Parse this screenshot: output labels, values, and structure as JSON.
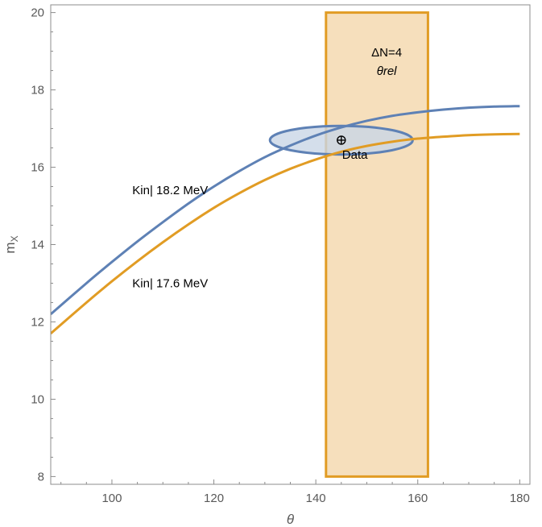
{
  "chart_data": {
    "type": "line",
    "title": "",
    "xlabel": "θ",
    "ylabel_main": "m",
    "ylabel_sub": "X",
    "xlim": [
      88,
      182
    ],
    "ylim": [
      7.8,
      20.2
    ],
    "xticks": [
      100,
      120,
      140,
      160,
      180
    ],
    "yticks": [
      8,
      10,
      12,
      14,
      16,
      18,
      20
    ],
    "grid": false,
    "series": [
      {
        "name": "Kin| 18.2 MeV",
        "color": "#5E81B5",
        "x": [
          88,
          95,
          100,
          105,
          110,
          115,
          120,
          125,
          130,
          135,
          140,
          145,
          150,
          155,
          160,
          165,
          170,
          175,
          180
        ],
        "y": [
          12.2,
          13.0,
          13.55,
          14.08,
          14.58,
          15.06,
          15.5,
          15.9,
          16.26,
          16.56,
          16.82,
          17.03,
          17.2,
          17.33,
          17.42,
          17.49,
          17.54,
          17.57,
          17.58
        ]
      },
      {
        "name": "Kin| 17.6 MeV",
        "color": "#E19C24",
        "x": [
          88,
          95,
          100,
          105,
          110,
          115,
          120,
          125,
          130,
          135,
          140,
          145,
          150,
          155,
          160,
          165,
          170,
          175,
          180
        ],
        "y": [
          11.7,
          12.5,
          13.05,
          13.57,
          14.06,
          14.52,
          14.95,
          15.33,
          15.67,
          15.96,
          16.2,
          16.4,
          16.55,
          16.66,
          16.74,
          16.79,
          16.83,
          16.85,
          16.86
        ]
      }
    ],
    "band": {
      "label_line1": "ΔN=4",
      "label_line2": "θrel",
      "x_range": [
        142,
        162
      ],
      "y_range": [
        8,
        20
      ],
      "fill": "#F6DFBC",
      "stroke": "#E19C24"
    },
    "ellipse": {
      "center": [
        145,
        16.7
      ],
      "half_width_x": 14,
      "half_height_y": 0.37,
      "fill": "#C9D6E6",
      "stroke": "#5E81B5"
    },
    "data_point": {
      "label": "Data",
      "x": 145,
      "y": 16.7
    },
    "annotations": [
      {
        "text": "Kin| 18.2 MeV",
        "x": 104,
        "y": 15.3
      },
      {
        "text": "Kin| 17.6 MeV",
        "x": 104,
        "y": 12.9
      }
    ]
  }
}
